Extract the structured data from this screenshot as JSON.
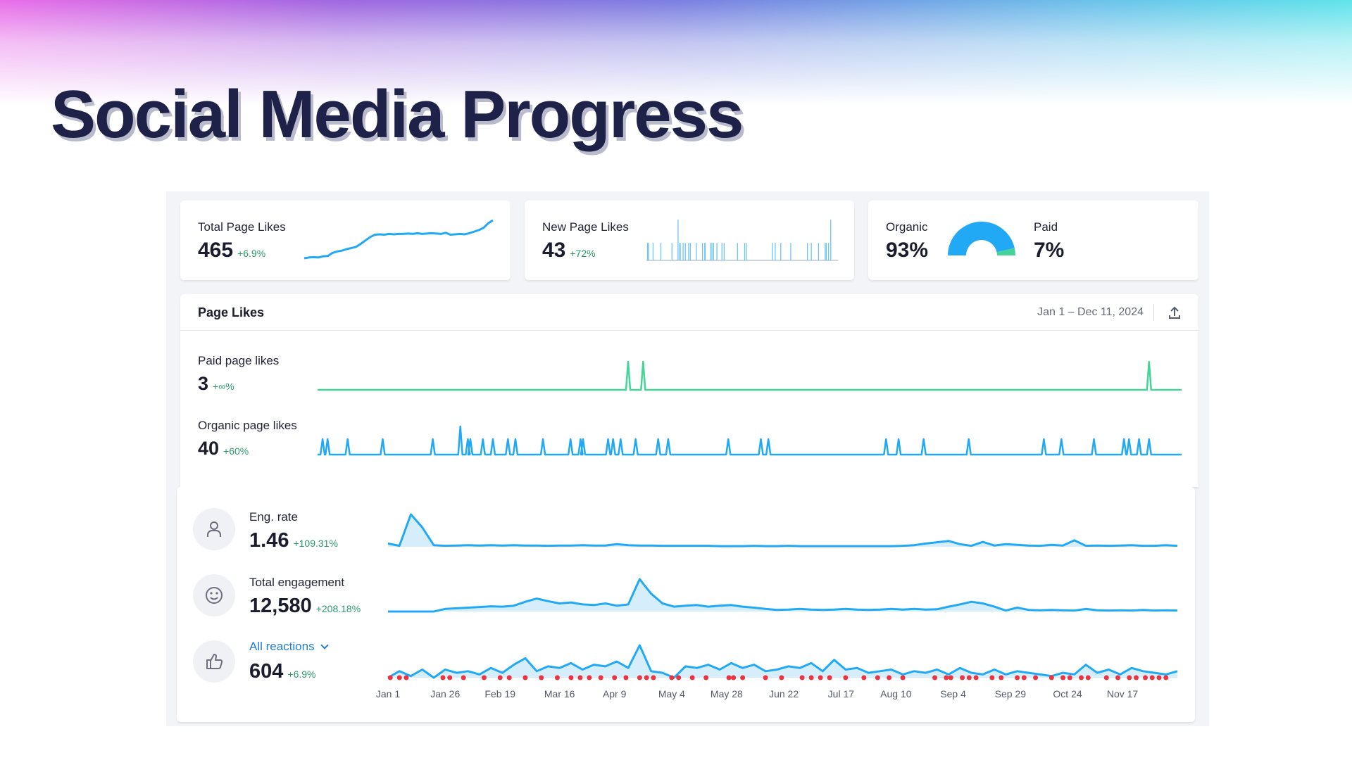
{
  "title": "Social Media Progress",
  "colors": {
    "blue": "#22a9f5",
    "green": "#45d39a",
    "delta": "#2a9a6a",
    "zero_marker": "#ee3340"
  },
  "cards": {
    "total_page_likes": {
      "label": "Total Page Likes",
      "value": "465",
      "delta": "+6.9%",
      "trend": [
        0,
        2,
        3,
        2,
        5,
        6,
        14,
        18,
        20,
        24,
        27,
        30,
        38,
        47,
        56,
        62,
        63,
        62,
        64,
        63,
        64,
        64,
        65,
        64,
        66,
        64,
        65,
        66,
        65,
        64,
        67,
        62,
        63,
        64,
        63,
        66,
        70,
        74,
        80,
        92,
        100
      ]
    },
    "new_page_likes": {
      "label": "New Page Likes",
      "value": "43",
      "delta": "+72%",
      "bar_days": [
        2,
        4,
        12,
        26,
        46,
        57,
        60,
        61,
        66,
        70,
        76,
        79,
        90,
        101,
        105,
        106,
        116,
        118,
        121,
        127,
        136,
        140,
        164,
        177,
        180,
        227,
        232,
        242,
        260,
        290,
        297,
        310,
        322,
        324,
        328,
        332
      ],
      "tall_bar_days": [
        57,
        332
      ]
    },
    "split": {
      "organic_label": "Organic",
      "organic_value": "93%",
      "organic_fraction": 0.93,
      "paid_label": "Paid",
      "paid_value": "7%"
    }
  },
  "page_likes": {
    "title": "Page Likes",
    "date_range": "Jan 1 – Dec 11, 2024",
    "export_icon": "upload-icon",
    "paid": {
      "label": "Paid page likes",
      "value": "3",
      "delta": "+∞%",
      "spike_days": [
        124,
        130,
        332
      ]
    },
    "organic": {
      "label": "Organic page likes",
      "value": "40",
      "delta": "+60%",
      "spike_days": [
        2,
        4,
        12,
        26,
        46,
        57,
        60,
        61,
        66,
        70,
        76,
        79,
        90,
        101,
        105,
        106,
        116,
        118,
        121,
        127,
        136,
        140,
        164,
        177,
        180,
        227,
        232,
        242,
        260,
        290,
        297,
        310,
        322,
        324,
        328,
        332
      ],
      "double_days": [
        57
      ]
    }
  },
  "metrics": {
    "eng_rate": {
      "label": "Eng. rate",
      "value": "1.46",
      "delta": "+109.31%",
      "icon": "user-icon",
      "series": [
        10,
        3,
        100,
        60,
        5,
        3,
        4,
        5,
        4,
        5,
        4,
        5,
        4,
        4,
        3,
        4,
        4,
        5,
        4,
        4,
        8,
        5,
        4,
        4,
        3,
        3,
        3,
        3,
        3,
        2,
        2,
        2,
        3,
        2,
        2,
        3,
        2,
        2,
        2,
        2,
        2,
        2,
        2,
        2,
        2,
        3,
        5,
        10,
        14,
        18,
        8,
        3,
        15,
        4,
        8,
        6,
        4,
        3,
        6,
        4,
        20,
        3,
        4,
        3,
        4,
        5,
        3,
        3,
        5,
        3
      ]
    },
    "total_engagement": {
      "label": "Total engagement",
      "value": "12,580",
      "delta": "+208.18%",
      "icon": "smiley-icon",
      "series": [
        0,
        0,
        0,
        0,
        0,
        8,
        10,
        12,
        14,
        16,
        15,
        18,
        30,
        40,
        32,
        25,
        28,
        22,
        20,
        25,
        18,
        22,
        100,
        55,
        25,
        15,
        18,
        20,
        15,
        18,
        20,
        15,
        12,
        8,
        5,
        6,
        8,
        6,
        5,
        6,
        8,
        6,
        5,
        6,
        8,
        6,
        8,
        6,
        7,
        15,
        22,
        30,
        25,
        15,
        3,
        12,
        5,
        4,
        5,
        4,
        3,
        8,
        4,
        3,
        4,
        3,
        5,
        3,
        4,
        3
      ]
    },
    "reactions": {
      "label": "All reactions",
      "value": "604",
      "delta": "+6.9%",
      "icon": "thumbs-up-icon",
      "series": [
        0,
        20,
        5,
        25,
        0,
        25,
        15,
        20,
        10,
        30,
        15,
        40,
        60,
        20,
        35,
        30,
        45,
        25,
        40,
        35,
        50,
        30,
        100,
        20,
        15,
        0,
        35,
        30,
        40,
        25,
        45,
        30,
        40,
        20,
        25,
        35,
        30,
        45,
        20,
        55,
        25,
        30,
        15,
        20,
        25,
        10,
        20,
        15,
        25,
        10,
        30,
        15,
        10,
        25,
        10,
        20,
        15,
        10,
        5,
        15,
        10,
        40,
        15,
        25,
        10,
        30,
        20,
        15,
        10,
        20
      ],
      "zero_days": [
        1,
        5,
        8,
        24,
        27,
        33,
        42,
        49,
        53,
        60,
        67,
        74,
        80,
        84,
        88,
        93,
        99,
        104,
        110,
        113,
        116,
        124,
        127,
        133,
        139,
        149,
        151,
        155,
        165,
        172,
        181,
        185,
        189,
        193,
        200,
        208,
        214,
        219,
        225,
        239,
        244,
        246,
        251,
        254,
        257,
        264,
        268,
        275,
        278,
        283,
        290,
        295,
        298,
        303,
        306,
        314,
        319,
        324,
        327,
        331,
        334,
        337,
        340
      ]
    },
    "reactions_dropdown_icon": "chevron-down-icon"
  },
  "x_axis": {
    "days_total": 345,
    "ticks": [
      {
        "label": "Jan 1",
        "day": 0
      },
      {
        "label": "Jan 26",
        "day": 25
      },
      {
        "label": "Feb 19",
        "day": 49
      },
      {
        "label": "Mar 16",
        "day": 75
      },
      {
        "label": "Apr 9",
        "day": 99
      },
      {
        "label": "May 4",
        "day": 124
      },
      {
        "label": "May 28",
        "day": 148
      },
      {
        "label": "Jun 22",
        "day": 173
      },
      {
        "label": "Jul 17",
        "day": 198
      },
      {
        "label": "Aug 10",
        "day": 222
      },
      {
        "label": "Sep 4",
        "day": 247
      },
      {
        "label": "Sep 29",
        "day": 272
      },
      {
        "label": "Oct 24",
        "day": 297
      },
      {
        "label": "Nov 17",
        "day": 321
      }
    ]
  }
}
